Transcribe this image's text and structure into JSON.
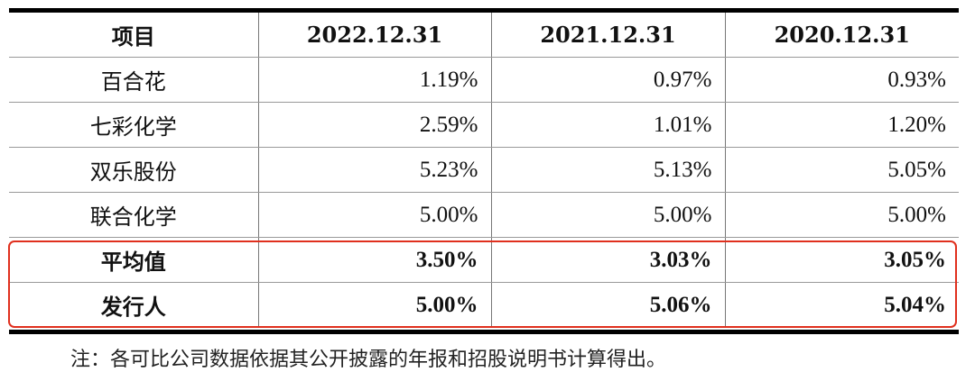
{
  "table": {
    "headers": [
      "项目",
      "2022.12.31",
      "2021.12.31",
      "2020.12.31"
    ],
    "rows": [
      {
        "name": "百合花",
        "values": [
          "1.19%",
          "0.97%",
          "0.93%"
        ],
        "bold": false
      },
      {
        "name": "七彩化学",
        "values": [
          "2.59%",
          "1.01%",
          "1.20%"
        ],
        "bold": false
      },
      {
        "name": "双乐股份",
        "values": [
          "5.23%",
          "5.13%",
          "5.05%"
        ],
        "bold": false
      },
      {
        "name": "联合化学",
        "values": [
          "5.00%",
          "5.00%",
          "5.00%"
        ],
        "bold": false
      },
      {
        "name": "平均值",
        "values": [
          "3.50%",
          "3.03%",
          "3.05%"
        ],
        "bold": true
      },
      {
        "name": "发行人",
        "values": [
          "5.00%",
          "5.06%",
          "5.04%"
        ],
        "bold": true
      }
    ]
  },
  "highlight_color": "#e0301e",
  "note": "注：各可比公司数据依据其公开披露的年报和招股说明书计算得出。"
}
